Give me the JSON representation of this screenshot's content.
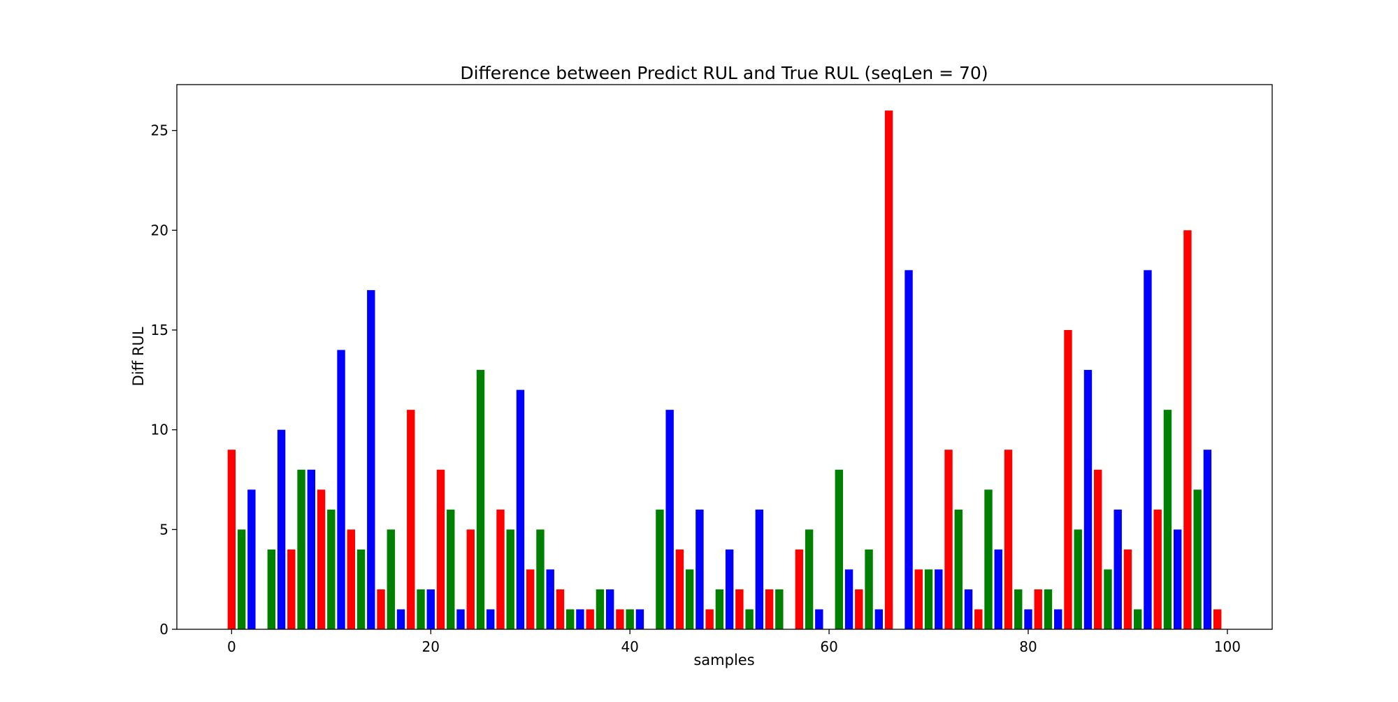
{
  "chart_data": {
    "type": "bar",
    "title": "Difference between Predict RUL and True RUL (seqLen = 70)",
    "xlabel": "samples",
    "ylabel": "Diff RUL",
    "xlim": [
      -5.5,
      104.5
    ],
    "ylim": [
      0,
      27.3
    ],
    "xticks": [
      0,
      20,
      40,
      60,
      80,
      100
    ],
    "yticks": [
      0,
      5,
      10,
      15,
      20,
      25
    ],
    "grid": false,
    "colors": {
      "r": "#ff0000",
      "g": "#008000",
      "b": "#0000ff"
    },
    "x": [
      0,
      1,
      2,
      3,
      4,
      5,
      6,
      7,
      8,
      9,
      10,
      11,
      12,
      13,
      14,
      15,
      16,
      17,
      18,
      19,
      20,
      21,
      22,
      23,
      24,
      25,
      26,
      27,
      28,
      29,
      30,
      31,
      32,
      33,
      34,
      35,
      36,
      37,
      38,
      39,
      40,
      41,
      42,
      43,
      44,
      45,
      46,
      47,
      48,
      49,
      50,
      51,
      52,
      53,
      54,
      55,
      56,
      57,
      58,
      59,
      60,
      61,
      62,
      63,
      64,
      65,
      66,
      67,
      68,
      69,
      70,
      71,
      72,
      73,
      74,
      75,
      76,
      77,
      78,
      79,
      80,
      81,
      82,
      83,
      84,
      85,
      86,
      87,
      88,
      89,
      90,
      91,
      92,
      93,
      94,
      95,
      96,
      97,
      98,
      99
    ],
    "values": [
      9,
      5,
      7,
      0,
      4,
      10,
      4,
      8,
      8,
      7,
      6,
      14,
      5,
      4,
      17,
      2,
      5,
      1,
      11,
      2,
      2,
      8,
      6,
      1,
      5,
      13,
      1,
      6,
      5,
      12,
      3,
      5,
      3,
      2,
      1,
      1,
      1,
      2,
      2,
      1,
      1,
      1,
      0,
      6,
      11,
      4,
      3,
      6,
      1,
      2,
      4,
      2,
      1,
      6,
      2,
      2,
      0,
      4,
      5,
      1,
      0,
      8,
      3,
      2,
      4,
      1,
      26,
      0,
      18,
      3,
      3,
      3,
      9,
      6,
      2,
      1,
      7,
      4,
      9,
      2,
      1,
      2,
      2,
      1,
      15,
      5,
      13,
      8,
      3,
      6,
      4,
      1,
      18,
      6,
      11,
      5,
      20,
      7,
      9,
      1
    ],
    "bar_colors": [
      "r",
      "g",
      "b",
      "r",
      "g",
      "b",
      "r",
      "g",
      "b",
      "r",
      "g",
      "b",
      "r",
      "g",
      "b",
      "r",
      "g",
      "b",
      "r",
      "g",
      "b",
      "r",
      "g",
      "b",
      "r",
      "g",
      "b",
      "r",
      "g",
      "b",
      "r",
      "g",
      "b",
      "r",
      "g",
      "b",
      "r",
      "g",
      "b",
      "r",
      "g",
      "b",
      "r",
      "g",
      "b",
      "r",
      "g",
      "b",
      "r",
      "g",
      "b",
      "r",
      "g",
      "b",
      "r",
      "g",
      "b",
      "r",
      "g",
      "b",
      "r",
      "g",
      "b",
      "r",
      "g",
      "b",
      "r",
      "g",
      "b",
      "r",
      "g",
      "b",
      "r",
      "g",
      "b",
      "r",
      "g",
      "b",
      "r",
      "g",
      "b",
      "r",
      "g",
      "b",
      "r",
      "g",
      "b",
      "r",
      "g",
      "b",
      "r",
      "g",
      "b",
      "r",
      "g",
      "b",
      "r",
      "g",
      "b",
      "r"
    ]
  }
}
